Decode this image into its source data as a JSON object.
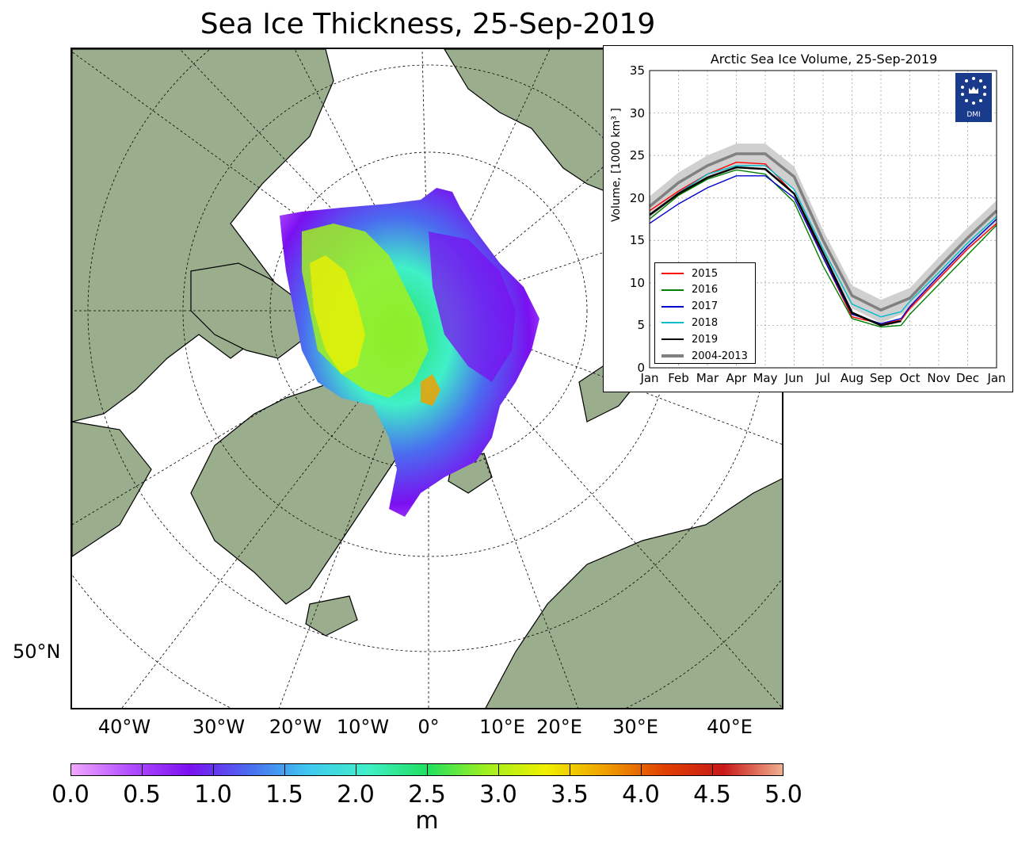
{
  "title": "Sea Ice Thickness, 25-Sep-2019",
  "map": {
    "lon_labels": [
      "40°W",
      "30°W",
      "20°W",
      "10°W",
      "0°",
      "10°E",
      "20°E",
      "30°E",
      "40°E"
    ],
    "lat_label": "50°N",
    "land_color": "#9aae8e",
    "ocean_color": "#ffffff"
  },
  "colorbar": {
    "ticks": [
      "0.0",
      "0.5",
      "1.0",
      "1.5",
      "2.0",
      "2.5",
      "3.0",
      "3.5",
      "4.0",
      "4.5",
      "5.0"
    ],
    "unit": "m",
    "range": [
      0,
      5
    ],
    "colors": [
      "#f0a8ff",
      "#b24dff",
      "#7a10f0",
      "#4a6cf0",
      "#40c8f0",
      "#40f0c8",
      "#20e060",
      "#a0f020",
      "#f0f000",
      "#f0a000",
      "#e04000",
      "#c81818",
      "#f0b090"
    ]
  },
  "inset": {
    "title": "Arctic Sea Ice Volume, 25-Sep-2019",
    "ylabel": "Volume, [1000 km³ ]",
    "logo_text": "DMI",
    "logo_color": "#1a3a8c"
  },
  "chart_data": {
    "type": "line",
    "title": "Arctic Sea Ice Volume, 25-Sep-2019",
    "ylabel": "Volume, [1000 km³ ]",
    "ylim": [
      0,
      35
    ],
    "yticks": [
      "0",
      "5",
      "10",
      "15",
      "20",
      "25",
      "30",
      "35"
    ],
    "xticks": [
      "Jan",
      "Feb",
      "Mar",
      "Apr",
      "May",
      "Jun",
      "Jul",
      "Aug",
      "Sep",
      "Oct",
      "Nov",
      "Dec",
      "Jan"
    ],
    "xlim": [
      0,
      12
    ],
    "grid": true,
    "legend": "bottom-left",
    "series": [
      {
        "name": "2015",
        "color": "#ff0000",
        "x": [
          0,
          1,
          2,
          3,
          4,
          5,
          6,
          7,
          8,
          8.7,
          9,
          10,
          11,
          12
        ],
        "y": [
          18.5,
          20.8,
          22.8,
          24.2,
          24.0,
          20.5,
          13.0,
          6.0,
          5.2,
          5.6,
          7.0,
          10.5,
          14.0,
          17.0
        ]
      },
      {
        "name": "2016",
        "color": "#008000",
        "x": [
          0,
          1,
          2,
          3,
          4,
          5,
          6,
          7,
          8,
          8.7,
          9,
          10,
          11,
          12
        ],
        "y": [
          17.5,
          20.3,
          22.2,
          23.3,
          22.8,
          19.5,
          12.0,
          5.8,
          4.8,
          5.0,
          6.3,
          9.8,
          13.3,
          16.8
        ]
      },
      {
        "name": "2017",
        "color": "#0000cc",
        "x": [
          0,
          1,
          2,
          3,
          4,
          5,
          6,
          7,
          8,
          8.7,
          9,
          10,
          11,
          12
        ],
        "y": [
          17.0,
          19.3,
          21.2,
          22.6,
          22.6,
          20.0,
          13.0,
          6.3,
          5.2,
          5.8,
          7.2,
          10.8,
          14.3,
          17.5
        ]
      },
      {
        "name": "2018",
        "color": "#00bbcc",
        "x": [
          0,
          1,
          2,
          3,
          4,
          5,
          6,
          7,
          8,
          8.7,
          9,
          10,
          11,
          12
        ],
        "y": [
          18.0,
          20.6,
          22.8,
          23.8,
          23.8,
          21.0,
          14.0,
          7.5,
          6.0,
          6.6,
          7.8,
          11.2,
          14.7,
          17.8
        ]
      },
      {
        "name": "2019",
        "color": "#000000",
        "x": [
          0,
          1,
          2,
          3,
          4,
          5,
          6,
          7,
          8,
          8.7
        ],
        "y": [
          18.0,
          20.5,
          22.4,
          23.6,
          23.4,
          20.5,
          13.5,
          6.5,
          5.0,
          5.5
        ]
      },
      {
        "name": "2004-2013",
        "color": "#808080",
        "x": [
          0,
          1,
          2,
          3,
          4,
          5,
          6,
          7,
          8,
          9,
          10,
          11,
          12
        ],
        "y": [
          19.0,
          21.8,
          23.8,
          25.2,
          25.2,
          22.5,
          15.0,
          8.5,
          6.8,
          8.2,
          11.8,
          15.3,
          18.5
        ]
      }
    ]
  }
}
